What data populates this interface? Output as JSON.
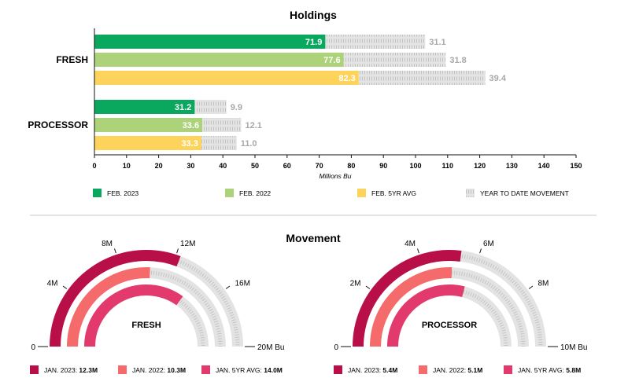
{
  "colors": {
    "feb2023": "#0aa85e",
    "feb2022": "#acd27a",
    "feb5yr": "#fdd35c",
    "ytd": "#e2e2e2",
    "jan2023": "#b90f49",
    "jan2022": "#f56a6b",
    "jan5yr": "#e23a6c",
    "track": "#e2e2e2"
  },
  "holdings": {
    "title": "Holdings",
    "xlabel": "Millions Bu",
    "legend": [
      {
        "label": "FEB. 2023",
        "color_key": "feb2023"
      },
      {
        "label": "FEB. 2022",
        "color_key": "feb2022"
      },
      {
        "label": "FEB. 5YR AVG",
        "color_key": "feb5yr"
      },
      {
        "label": "YEAR TO DATE MOVEMENT",
        "color_key": "ytd"
      }
    ]
  },
  "movement": {
    "title": "Movement"
  },
  "chart_data": [
    {
      "type": "bar",
      "orientation": "horizontal",
      "title": "Holdings",
      "xlabel": "Millions Bu",
      "xlim": [
        0,
        150
      ],
      "xticks": [
        0,
        10,
        20,
        30,
        40,
        50,
        60,
        70,
        80,
        90,
        100,
        110,
        120,
        130,
        140,
        150
      ],
      "categories": [
        "FRESH",
        "PROCESSOR"
      ],
      "series": [
        {
          "name": "FEB. 2023",
          "values": [
            71.9,
            31.2
          ],
          "ytd_movement": [
            31.1,
            9.9
          ]
        },
        {
          "name": "FEB. 2022",
          "values": [
            77.6,
            33.6
          ],
          "ytd_movement": [
            31.8,
            12.1
          ]
        },
        {
          "name": "FEB. 5YR AVG",
          "values": [
            82.3,
            33.3
          ],
          "ytd_movement": [
            39.4,
            11.0
          ]
        }
      ],
      "legend": [
        "FEB. 2023",
        "FEB. 2022",
        "FEB. 5YR AVG",
        "YEAR TO DATE MOVEMENT"
      ]
    },
    {
      "type": "radial-bar",
      "title": "Movement",
      "gauges": [
        {
          "label": "FRESH",
          "range": [
            0,
            20
          ],
          "ticks": [
            "0",
            "4M",
            "8M",
            "12M",
            "16M",
            "20M Bu"
          ],
          "series": [
            {
              "name": "JAN. 2023",
              "value_text": "12.3M",
              "value": 12.3
            },
            {
              "name": "JAN. 2022",
              "value_text": "10.3M",
              "value": 10.3
            },
            {
              "name": "JAN. 5YR AVG",
              "value_text": "14.0M",
              "value": 14.0
            }
          ]
        },
        {
          "label": "PROCESSOR",
          "range": [
            0,
            10
          ],
          "ticks": [
            "0",
            "2M",
            "4M",
            "6M",
            "8M",
            "10M Bu"
          ],
          "series": [
            {
              "name": "JAN. 2023",
              "value_text": "5.4M",
              "value": 5.4
            },
            {
              "name": "JAN. 2022",
              "value_text": "5.1M",
              "value": 5.1
            },
            {
              "name": "JAN. 5YR AVG",
              "value_text": "5.8M",
              "value": 5.8
            }
          ]
        }
      ]
    }
  ]
}
